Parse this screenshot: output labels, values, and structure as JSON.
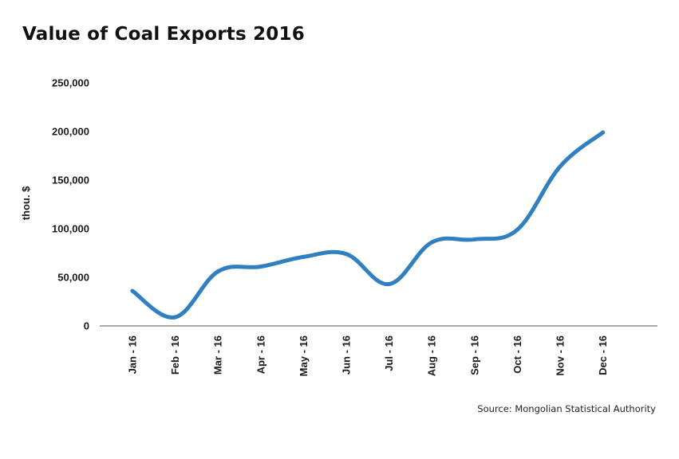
{
  "chart_data": {
    "type": "line",
    "title": "Value of Coal Exports 2016",
    "xlabel": "",
    "ylabel": "thou. $",
    "categories": [
      "Jan - 16",
      "Feb - 16",
      "Mar - 16",
      "Apr - 16",
      "May - 16",
      "Jun - 16",
      "Jul - 16",
      "Aug - 16",
      "Sep - 16",
      "Oct - 16",
      "Nov - 16",
      "Dec - 16"
    ],
    "series": [
      {
        "values": [
          36000,
          9000,
          56000,
          61000,
          71000,
          74000,
          43000,
          86000,
          89000,
          99000,
          164000,
          199000
        ]
      }
    ],
    "ylim": [
      0,
      250000
    ],
    "yticks": [
      "0",
      "50,000",
      "100,000",
      "150,000",
      "200,000",
      "250,000"
    ],
    "ytick_values": [
      0,
      50000,
      100000,
      150000,
      200000,
      250000
    ],
    "grid": false,
    "legend": "none",
    "line_color": "#2f7fc1",
    "source": "Source: Mongolian Statistical Authority"
  }
}
